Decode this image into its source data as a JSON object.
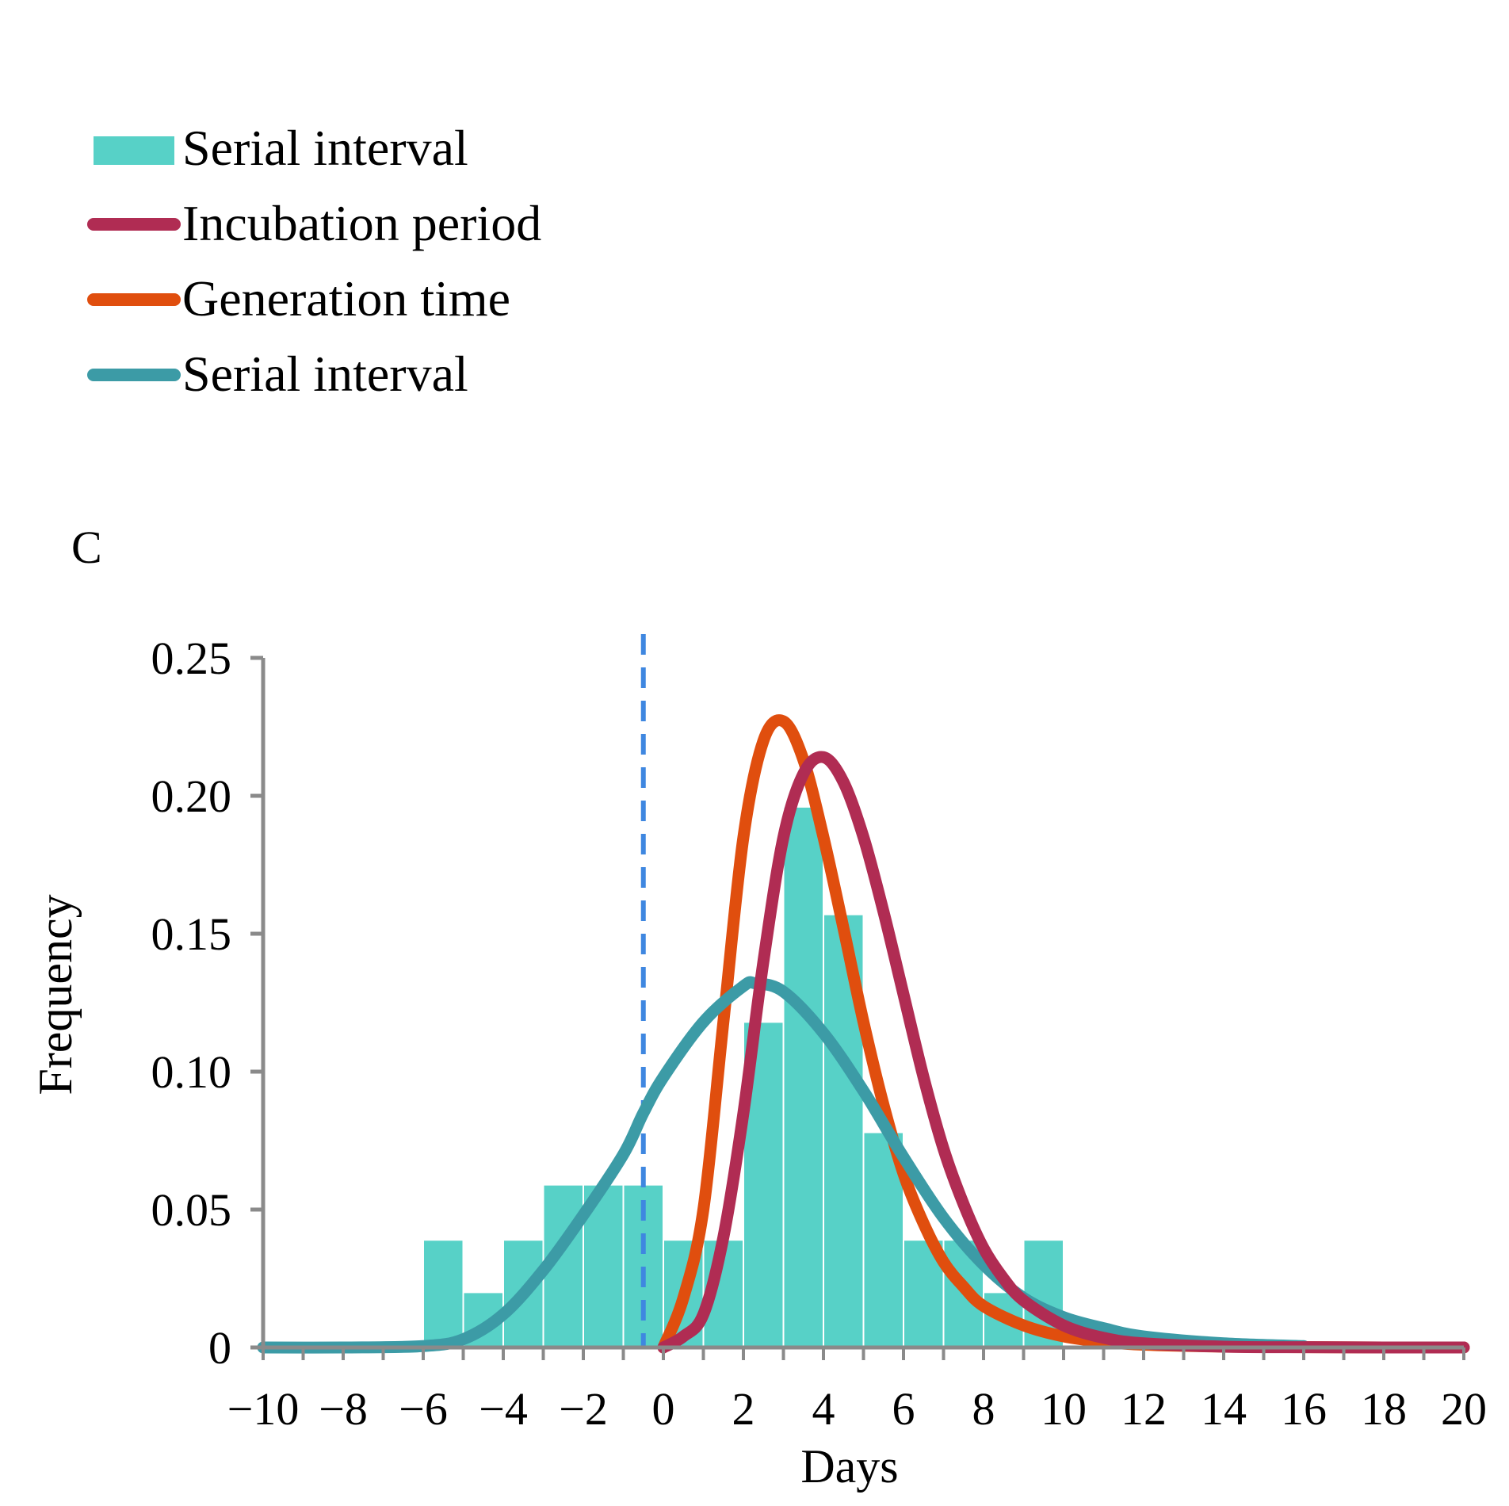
{
  "chart_data": {
    "type": "bar",
    "panel_label": "C",
    "xlabel": "Days",
    "ylabel": "Frequency",
    "xlim": [
      -10,
      20
    ],
    "ylim": [
      0,
      0.25
    ],
    "x_ticks": [
      -10,
      -8,
      -6,
      -4,
      -2,
      0,
      2,
      4,
      6,
      8,
      10,
      12,
      14,
      16,
      18,
      20
    ],
    "x_tick_labels": [
      "−10",
      "−8",
      "−6",
      "−4",
      "−2",
      "0",
      "2",
      "4",
      "6",
      "8",
      "10",
      "12",
      "14",
      "16",
      "18",
      "20"
    ],
    "y_ticks": [
      0,
      0.05,
      0.1,
      0.15,
      0.2,
      0.25
    ],
    "y_tick_labels": [
      "0",
      "0.05",
      "0.10",
      "0.15",
      "0.20",
      "0.25"
    ],
    "reference_line": {
      "x": -0.5,
      "style": "dashed",
      "color": "#3f87e0"
    },
    "legend": {
      "position": "top-left",
      "entries": [
        {
          "label": "Serial interval",
          "kind": "bar",
          "color": "#57d1c7"
        },
        {
          "label": "Incubation period",
          "kind": "line",
          "color": "#b02c53"
        },
        {
          "label": "Generation time",
          "kind": "line",
          "color": "#e04e0e"
        },
        {
          "label": "Serial interval",
          "kind": "line",
          "color": "#3c9ba6"
        }
      ]
    },
    "histogram": {
      "name": "Serial interval",
      "color": "#57d1c7",
      "bins": [
        {
          "x0": -6,
          "x1": -5,
          "value": 0.039
        },
        {
          "x0": -5,
          "x1": -4,
          "value": 0.02
        },
        {
          "x0": -4,
          "x1": -3,
          "value": 0.039
        },
        {
          "x0": -3,
          "x1": -2,
          "value": 0.059
        },
        {
          "x0": -2,
          "x1": -1,
          "value": 0.059
        },
        {
          "x0": -1,
          "x1": 0,
          "value": 0.059
        },
        {
          "x0": 0,
          "x1": 1,
          "value": 0.039
        },
        {
          "x0": 1,
          "x1": 2,
          "value": 0.039
        },
        {
          "x0": 2,
          "x1": 3,
          "value": 0.118
        },
        {
          "x0": 3,
          "x1": 4,
          "value": 0.196
        },
        {
          "x0": 4,
          "x1": 5,
          "value": 0.157
        },
        {
          "x0": 5,
          "x1": 6,
          "value": 0.078
        },
        {
          "x0": 6,
          "x1": 7,
          "value": 0.039
        },
        {
          "x0": 7,
          "x1": 8,
          "value": 0.039
        },
        {
          "x0": 8,
          "x1": 9,
          "value": 0.02
        },
        {
          "x0": 9,
          "x1": 10,
          "value": 0.039
        }
      ]
    },
    "series": [
      {
        "name": "Serial interval",
        "color": "#3c9ba6",
        "x": [
          -10,
          -8,
          -6,
          -5,
          -4,
          -3,
          -2,
          -1,
          -0.5,
          0,
          1,
          2,
          2.3,
          3,
          4,
          5,
          6,
          7,
          8,
          9,
          10,
          11,
          12,
          14,
          16
        ],
        "y": [
          0,
          0,
          0.0005,
          0.003,
          0.012,
          0.028,
          0.048,
          0.07,
          0.085,
          0.098,
          0.118,
          0.131,
          0.132,
          0.129,
          0.114,
          0.093,
          0.069,
          0.047,
          0.03,
          0.018,
          0.011,
          0.007,
          0.004,
          0.0015,
          0.0005
        ]
      },
      {
        "name": "Incubation period",
        "color": "#b02c53",
        "x": [
          0,
          0.5,
          1,
          1.5,
          2,
          2.5,
          3,
          3.5,
          4,
          4.5,
          5,
          5.5,
          6,
          6.5,
          7,
          7.5,
          8,
          8.5,
          9,
          10,
          11,
          12,
          14,
          16,
          18,
          20
        ],
        "y": [
          0,
          0.004,
          0.012,
          0.04,
          0.085,
          0.14,
          0.185,
          0.208,
          0.214,
          0.205,
          0.185,
          0.158,
          0.128,
          0.098,
          0.072,
          0.052,
          0.036,
          0.025,
          0.017,
          0.008,
          0.0035,
          0.0015,
          0.0003,
          0.0001,
          0,
          0
        ]
      },
      {
        "name": "Generation time",
        "color": "#e04e0e",
        "x": [
          0,
          0.5,
          1,
          1.5,
          2,
          2.5,
          3,
          3.5,
          4,
          4.5,
          5,
          5.5,
          6,
          6.5,
          7,
          7.5,
          8,
          9,
          10,
          11,
          12,
          14,
          16,
          18,
          20
        ],
        "y": [
          0,
          0.018,
          0.05,
          0.118,
          0.185,
          0.22,
          0.227,
          0.213,
          0.185,
          0.152,
          0.118,
          0.088,
          0.063,
          0.045,
          0.031,
          0.022,
          0.015,
          0.008,
          0.004,
          0.002,
          0.001,
          0.0003,
          0.0001,
          0,
          0
        ]
      }
    ]
  }
}
